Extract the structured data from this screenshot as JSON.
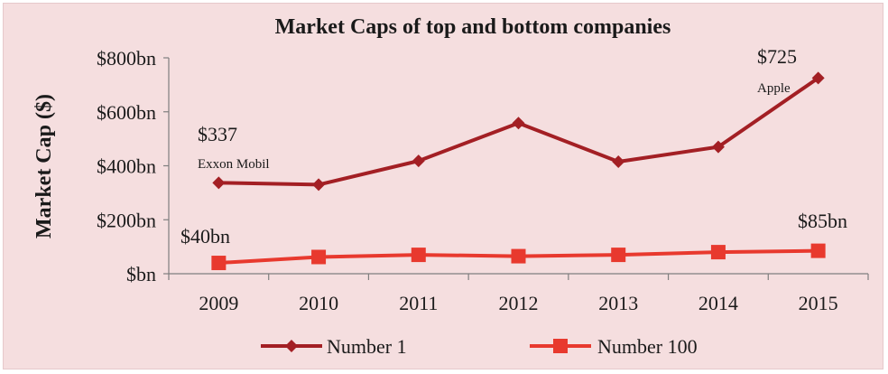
{
  "chart_data": {
    "type": "line",
    "title": "Market Caps of top and bottom companies",
    "xlabel": "",
    "ylabel": "Market Cap ($)",
    "categories": [
      "2009",
      "2010",
      "2011",
      "2012",
      "2013",
      "2014",
      "2015"
    ],
    "ylim": [
      0,
      800
    ],
    "yticks": [
      0,
      200,
      400,
      600,
      800
    ],
    "ytick_labels": [
      "$bn",
      "$200bn",
      "$400bn",
      "$600bn",
      "$800bn"
    ],
    "series": [
      {
        "name": "Number 1",
        "color": "#a31f24",
        "marker": "diamond",
        "values": [
          337,
          330,
          418,
          558,
          415,
          470,
          725
        ]
      },
      {
        "name": "Number 100",
        "color": "#e8392e",
        "marker": "square",
        "values": [
          40,
          62,
          70,
          65,
          70,
          80,
          85
        ]
      }
    ],
    "annotations": {
      "first_top_value": "$337",
      "first_top_label": "Exxon Mobil",
      "last_top_value": "$725",
      "last_top_label": "Apple",
      "first_bottom_value": "$40bn",
      "last_bottom_value": "$85bn"
    },
    "legend_position": "bottom"
  }
}
